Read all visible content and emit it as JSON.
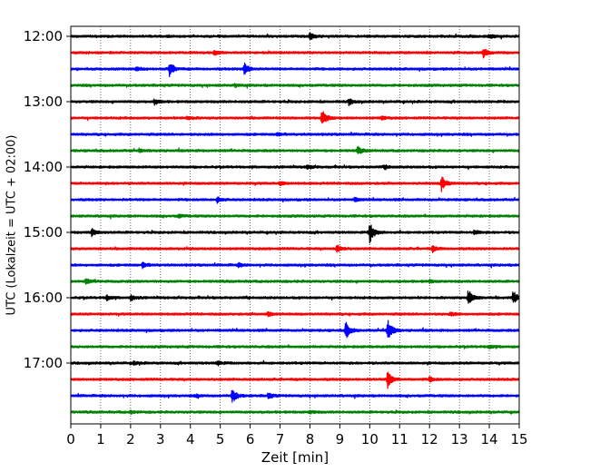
{
  "chart_data": {
    "type": "line",
    "title": "",
    "xlabel": "Zeit  [min]",
    "ylabel": "UTC (Lokalzeit = UTC + 02:00)",
    "xlim": [
      0,
      15
    ],
    "x_ticks": [
      "0",
      "1",
      "2",
      "3",
      "4",
      "5",
      "6",
      "7",
      "8",
      "9",
      "10",
      "11",
      "12",
      "13",
      "14",
      "15"
    ],
    "y_tick_labels": [
      "12:00",
      "13:00",
      "14:00",
      "15:00",
      "16:00",
      "17:00"
    ],
    "grid": "vertical dotted lines at each minute",
    "trace_interval_minutes": 15,
    "colors_cycle": [
      "#000000",
      "#ff0000",
      "#0000ff",
      "#008000"
    ],
    "traces": [
      {
        "start": "12:00",
        "color": "#000000",
        "events": [
          [
            8.0,
            0.4
          ],
          [
            14.0,
            0.2
          ]
        ]
      },
      {
        "start": "12:15",
        "color": "#ff0000",
        "events": [
          [
            4.8,
            0.25
          ],
          [
            13.8,
            0.55
          ]
        ]
      },
      {
        "start": "12:30",
        "color": "#0000ff",
        "events": [
          [
            3.3,
            0.85
          ],
          [
            5.8,
            0.85
          ],
          [
            2.2,
            0.2
          ]
        ]
      },
      {
        "start": "12:45",
        "color": "#008000",
        "events": [
          [
            5.5,
            0.15
          ]
        ]
      },
      {
        "start": "13:00",
        "color": "#000000",
        "events": [
          [
            2.8,
            0.3
          ],
          [
            9.3,
            0.35
          ]
        ]
      },
      {
        "start": "13:15",
        "color": "#ff0000",
        "events": [
          [
            8.4,
            1.0
          ],
          [
            3.9,
            0.25
          ],
          [
            10.4,
            0.2
          ]
        ]
      },
      {
        "start": "13:30",
        "color": "#0000ff",
        "events": [
          [
            6.9,
            0.2
          ]
        ]
      },
      {
        "start": "13:45",
        "color": "#008000",
        "events": [
          [
            9.6,
            0.45
          ],
          [
            2.3,
            0.15
          ]
        ]
      },
      {
        "start": "14:00",
        "color": "#000000",
        "events": [
          [
            7.9,
            0.25
          ],
          [
            10.5,
            0.2
          ]
        ]
      },
      {
        "start": "14:15",
        "color": "#ff0000",
        "events": [
          [
            12.4,
            0.95
          ],
          [
            7.0,
            0.2
          ]
        ]
      },
      {
        "start": "14:30",
        "color": "#0000ff",
        "events": [
          [
            4.9,
            0.3
          ],
          [
            9.5,
            0.2
          ]
        ]
      },
      {
        "start": "14:45",
        "color": "#008000",
        "events": [
          [
            3.6,
            0.2
          ]
        ]
      },
      {
        "start": "15:00",
        "color": "#000000",
        "events": [
          [
            10.0,
            1.3
          ],
          [
            0.7,
            0.45
          ],
          [
            13.5,
            0.25
          ]
        ]
      },
      {
        "start": "15:15",
        "color": "#ff0000",
        "events": [
          [
            8.9,
            0.5
          ],
          [
            12.1,
            0.35
          ]
        ]
      },
      {
        "start": "15:30",
        "color": "#0000ff",
        "events": [
          [
            2.4,
            0.35
          ],
          [
            5.6,
            0.2
          ]
        ]
      },
      {
        "start": "15:45",
        "color": "#008000",
        "events": [
          [
            0.5,
            0.3
          ],
          [
            12.0,
            0.15
          ]
        ]
      },
      {
        "start": "16:00",
        "color": "#000000",
        "events": [
          [
            13.3,
            1.0
          ],
          [
            14.8,
            0.8
          ],
          [
            1.2,
            0.3
          ],
          [
            2.0,
            0.3
          ]
        ]
      },
      {
        "start": "16:15",
        "color": "#ff0000",
        "events": [
          [
            6.6,
            0.3
          ],
          [
            12.7,
            0.2
          ]
        ]
      },
      {
        "start": "16:30",
        "color": "#0000ff",
        "events": [
          [
            9.2,
            1.0
          ],
          [
            10.6,
            1.4
          ]
        ]
      },
      {
        "start": "16:45",
        "color": "#008000",
        "events": [
          [
            14.0,
            0.2
          ]
        ]
      },
      {
        "start": "17:00",
        "color": "#000000",
        "events": [
          [
            4.9,
            0.25
          ],
          [
            2.1,
            0.2
          ]
        ]
      },
      {
        "start": "17:15",
        "color": "#ff0000",
        "events": [
          [
            10.6,
            1.0
          ],
          [
            12.0,
            0.25
          ]
        ]
      },
      {
        "start": "17:30",
        "color": "#0000ff",
        "events": [
          [
            5.4,
            0.9
          ],
          [
            6.6,
            0.35
          ],
          [
            4.2,
            0.15
          ]
        ]
      },
      {
        "start": "17:45",
        "color": "#008000",
        "events": [
          [
            2.0,
            0.15
          ],
          [
            8.0,
            0.15
          ]
        ]
      }
    ]
  }
}
